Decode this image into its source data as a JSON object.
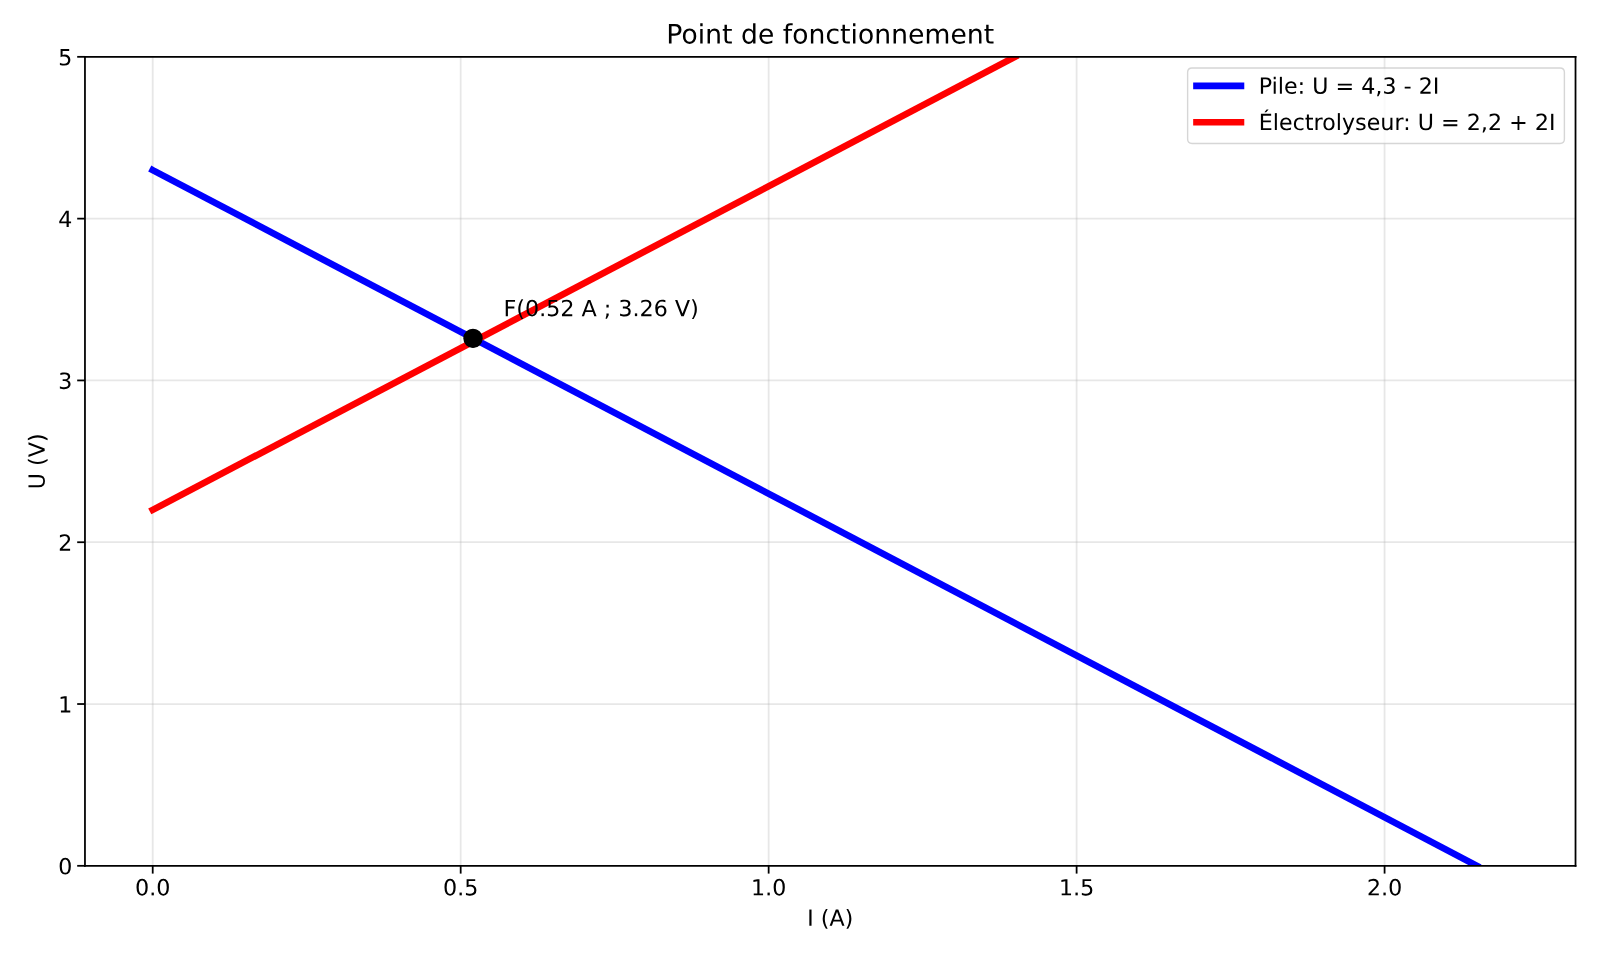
{
  "chart_data": {
    "type": "line",
    "title": "Point de fonctionnement",
    "xlabel": "I (A)",
    "ylabel": "U (V)",
    "xlim": [
      -0.11,
      2.31
    ],
    "ylim": [
      0,
      5
    ],
    "xticks": [
      {
        "value": 0,
        "label": "0.0"
      },
      0.5,
      {
        "value": 1,
        "label": "1.0"
      },
      1.5,
      {
        "value": 2,
        "label": "2.0"
      }
    ],
    "yticks": [
      0,
      1,
      2,
      3,
      4,
      5
    ],
    "grid": true,
    "legend": "top right",
    "series": [
      {
        "name": "Pile: U = 4,3 - 2I",
        "color": "#0000ff",
        "x": [
          0,
          2.15
        ],
        "values": [
          4.3,
          0
        ]
      },
      {
        "name": "Électrolyseur: U = 2,2 + 2I",
        "color": "#ff0000",
        "x": [
          0,
          1.4
        ],
        "values": [
          2.2,
          5.0
        ]
      },
      {
        "type": "scatter",
        "color": "#000000",
        "marker": "circle",
        "x": [
          0.52
        ],
        "values": [
          3.26
        ]
      }
    ],
    "annotations": [
      {
        "text": "F(0.52 A ; 3.26 V)",
        "x": 0.52,
        "y": 3.26
      }
    ]
  }
}
